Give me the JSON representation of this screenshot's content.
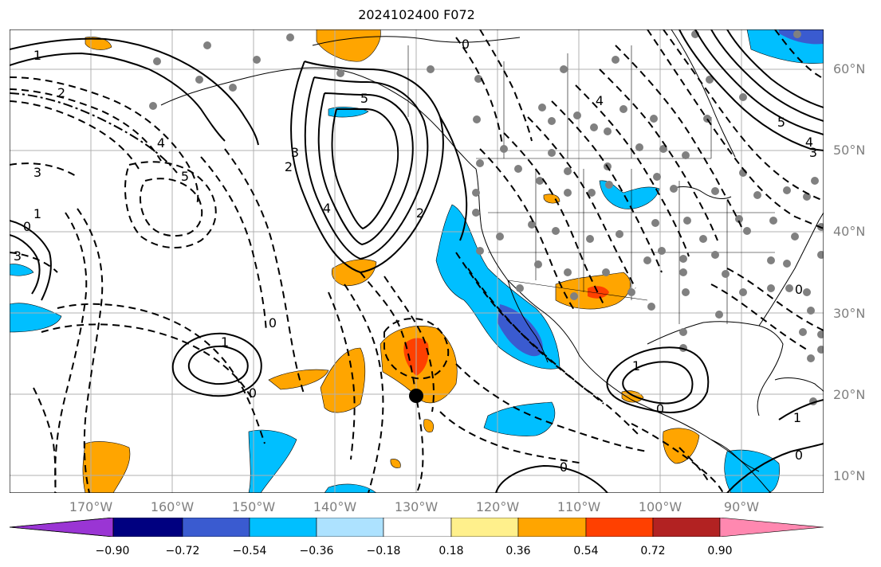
{
  "title": "2024102400 F072",
  "lat_labels": [
    "60°N",
    "50°N",
    "40°N",
    "30°N",
    "20°N",
    "10°N"
  ],
  "lon_labels": [
    "170°W",
    "160°W",
    "150°W",
    "140°W",
    "130°W",
    "120°W",
    "110°W",
    "100°W",
    "90°W"
  ],
  "colorbar": {
    "tick_labels": [
      "−0.90",
      "−0.72",
      "−0.54",
      "−0.36",
      "−0.18",
      "0.18",
      "0.36",
      "0.54",
      "0.72",
      "0.90"
    ],
    "colors": [
      "#9a35d4",
      "#000080",
      "#3a5bd0",
      "#00bfff",
      "#ade2ff",
      "#ffffff",
      "#fff08c",
      "#ffa500",
      "#ff4000",
      "#b22222",
      "#ff88b0"
    ]
  },
  "contour_labels": [
    {
      "text": "1"
    },
    {
      "text": "2"
    },
    {
      "text": "3"
    },
    {
      "text": "4"
    },
    {
      "text": "5"
    },
    {
      "text": "5"
    },
    {
      "text": "4"
    },
    {
      "text": "3"
    },
    {
      "text": "2"
    },
    {
      "text": "0"
    },
    {
      "text": "2"
    },
    {
      "text": "1"
    },
    {
      "text": "0"
    },
    {
      "text": "3"
    },
    {
      "text": "4"
    },
    {
      "text": "0"
    },
    {
      "text": "1"
    },
    {
      "text": "0"
    },
    {
      "text": "1"
    },
    {
      "text": "0"
    },
    {
      "text": "5"
    },
    {
      "text": "4"
    },
    {
      "text": "3"
    },
    {
      "text": "0"
    },
    {
      "text": "0"
    },
    {
      "text": "1"
    },
    {
      "text": "0"
    }
  ],
  "map": {
    "extent": {
      "lon_min": -178,
      "lon_max": -78,
      "lat_min": 8,
      "lat_max": 65
    },
    "marker_color": "#000000",
    "coast_color": "#000000",
    "station_color": "#808080",
    "grid_color": "#b0b0b0"
  }
}
